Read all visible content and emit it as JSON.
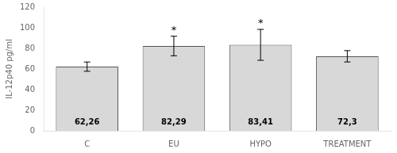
{
  "chart_data": {
    "type": "bar",
    "categories": [
      "C",
      "EU",
      "HYPO",
      "TREATMENT"
    ],
    "values": [
      62.26,
      82.29,
      83.41,
      72.3
    ],
    "errors": [
      4.5,
      9.5,
      15.0,
      5.5
    ],
    "value_labels": [
      "62,26",
      "82,29",
      "83,41",
      "72,3"
    ],
    "data_labels": true,
    "annotations": [
      {
        "category": "EU",
        "text": "*"
      },
      {
        "category": "HYPO",
        "text": "*"
      }
    ],
    "ylabel": "IL-12p40 pg/ml",
    "color": "#d8d8d8",
    "ylim": [
      0,
      120
    ],
    "yticks": [
      0,
      20,
      40,
      60,
      80,
      100,
      120
    ],
    "grid": false
  }
}
